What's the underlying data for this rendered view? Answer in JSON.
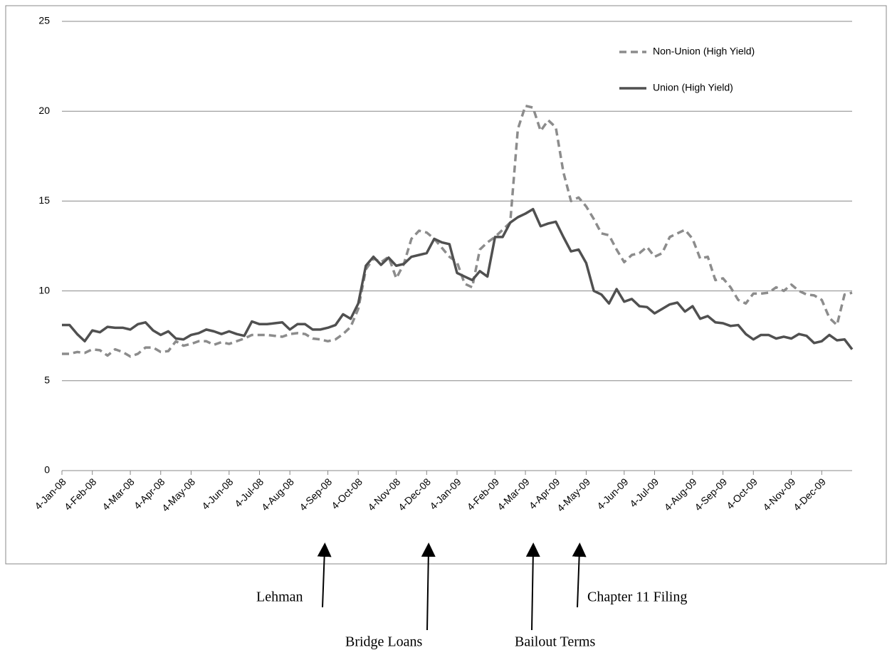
{
  "chart_data": {
    "type": "line",
    "categories": [
      "4-Jan-08",
      null,
      null,
      null,
      "4-Feb-08",
      null,
      null,
      null,
      null,
      "4-Mar-08",
      null,
      null,
      null,
      "4-Apr-08",
      null,
      null,
      null,
      "4-May-08",
      null,
      null,
      null,
      null,
      "4-Jun-08",
      null,
      null,
      null,
      "4-Jul-08",
      null,
      null,
      null,
      "4-Aug-08",
      null,
      null,
      null,
      null,
      "4-Sep-08",
      null,
      null,
      null,
      "4-Oct-08",
      null,
      null,
      null,
      null,
      "4-Nov-08",
      null,
      null,
      null,
      "4-Dec-08",
      null,
      null,
      null,
      "4-Jan-09",
      null,
      null,
      null,
      null,
      "4-Feb-09",
      null,
      null,
      null,
      "4-Mar-09",
      null,
      null,
      null,
      "4-Apr-09",
      null,
      null,
      null,
      "4-May-09",
      null,
      null,
      null,
      null,
      "4-Jun-09",
      null,
      null,
      null,
      "4-Jul-09",
      null,
      null,
      null,
      null,
      "4-Aug-09",
      null,
      null,
      null,
      "4-Sep-09",
      null,
      null,
      null,
      "4-Oct-09",
      null,
      null,
      null,
      null,
      "4-Nov-09",
      null,
      null,
      null,
      "4-Dec-09",
      null,
      null,
      null,
      null
    ],
    "series": [
      {
        "name": "Non-Union (High Yield)",
        "color": "#8c8c8c",
        "dashed": true,
        "values": [
          6.5,
          6.5,
          6.6,
          6.55,
          6.75,
          6.7,
          6.4,
          6.75,
          6.6,
          6.35,
          6.5,
          6.85,
          6.85,
          6.6,
          6.65,
          7.2,
          6.95,
          7.05,
          7.2,
          7.2,
          7.0,
          7.15,
          7.05,
          7.2,
          7.35,
          7.55,
          7.55,
          7.55,
          7.5,
          7.45,
          7.6,
          7.65,
          7.6,
          7.35,
          7.3,
          7.2,
          7.3,
          7.6,
          8.0,
          9.0,
          11.2,
          11.8,
          11.6,
          11.9,
          10.7,
          11.5,
          12.9,
          13.35,
          13.25,
          12.9,
          12.4,
          11.9,
          11.6,
          10.4,
          10.2,
          12.3,
          12.7,
          13.0,
          13.4,
          13.8,
          19.0,
          20.3,
          20.2,
          18.9,
          19.5,
          19.1,
          16.6,
          15.0,
          15.2,
          14.7,
          14.0,
          13.2,
          13.1,
          12.3,
          11.6,
          12.0,
          12.1,
          12.45,
          11.9,
          12.1,
          13.0,
          13.2,
          13.4,
          12.9,
          11.8,
          11.9,
          10.6,
          10.7,
          10.2,
          9.5,
          9.3,
          9.85,
          9.85,
          9.9,
          10.2,
          10.0,
          10.35,
          10.0,
          9.8,
          9.75,
          9.5,
          8.5,
          8.1,
          9.8,
          9.9
        ]
      },
      {
        "name": "Union (High Yield)",
        "color": "#505050",
        "dashed": false,
        "values": [
          8.1,
          8.1,
          7.6,
          7.2,
          7.8,
          7.7,
          8.0,
          7.95,
          7.95,
          7.85,
          8.15,
          8.25,
          7.8,
          7.55,
          7.75,
          7.35,
          7.3,
          7.55,
          7.65,
          7.85,
          7.75,
          7.6,
          7.75,
          7.6,
          7.5,
          8.3,
          8.15,
          8.15,
          8.2,
          8.25,
          7.85,
          8.15,
          8.15,
          7.85,
          7.85,
          7.95,
          8.1,
          8.7,
          8.45,
          9.3,
          11.4,
          11.9,
          11.45,
          11.85,
          11.4,
          11.5,
          11.9,
          12.0,
          12.1,
          12.9,
          12.7,
          12.6,
          11.0,
          10.8,
          10.6,
          11.1,
          10.8,
          13.0,
          13.0,
          13.8,
          14.1,
          14.3,
          14.55,
          13.6,
          13.75,
          13.85,
          13.0,
          12.2,
          12.3,
          11.55,
          10.0,
          9.8,
          9.3,
          10.1,
          9.4,
          9.55,
          9.15,
          9.1,
          8.75,
          9.0,
          9.25,
          9.35,
          8.85,
          9.15,
          8.45,
          8.6,
          8.25,
          8.2,
          8.05,
          8.1,
          7.6,
          7.3,
          7.55,
          7.55,
          7.35,
          7.45,
          7.35,
          7.6,
          7.5,
          7.1,
          7.2,
          7.55,
          7.25,
          7.3,
          6.75
        ]
      }
    ],
    "ylim": [
      0,
      25
    ],
    "yticks": [
      0,
      5,
      10,
      15,
      20,
      25
    ],
    "grid": true,
    "legend": "upper right",
    "annotations": [
      {
        "text": "Lehman"
      },
      {
        "text": "Bridge Loans"
      },
      {
        "text": "Bailout Terms"
      },
      {
        "text": "Chapter 11 Filing"
      }
    ]
  }
}
